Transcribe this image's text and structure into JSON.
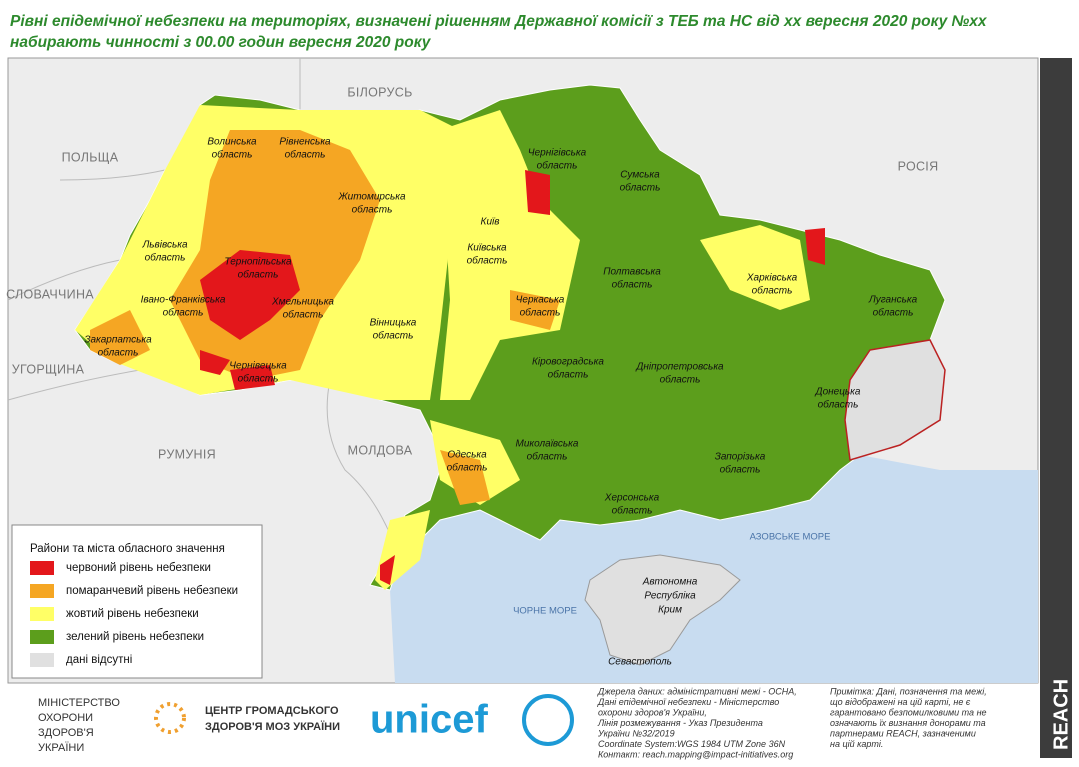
{
  "title": [
    "Рівні епідемічної небезпеки на територіях, визначені рішенням Державної комісії з ТЕБ та НС від хх вересня 2020 року №хх",
    "набирають чинності з 00.00 годин  вересня 2020 року"
  ],
  "countries": [
    "БІЛОРУСЬ",
    "ПОЛЬЩА",
    "РОСІЯ",
    "СЛОВАЧЧИНА",
    "УГОРЩИНА",
    "РУМУНІЯ",
    "МОЛДОВА"
  ],
  "seas": [
    "АЗОВСЬКЕ МОРЕ",
    "ЧОРНЕ МОРЕ"
  ],
  "crimea": [
    "Автономна",
    "Республіка",
    "Крим"
  ],
  "sevastopol": "Севастополь",
  "regions": [
    {
      "name": "Волинська",
      "type": "область"
    },
    {
      "name": "Рівненська",
      "type": "область"
    },
    {
      "name": "Житомирська",
      "type": "область"
    },
    {
      "name": "Чернігівська",
      "type": "область"
    },
    {
      "name": "Сумська",
      "type": "область"
    },
    {
      "name": "Київ"
    },
    {
      "name": "Київська",
      "type": "область"
    },
    {
      "name": "Львівська",
      "type": "область"
    },
    {
      "name": "Тернопільська",
      "type": "область"
    },
    {
      "name": "Хмельницька",
      "type": "область"
    },
    {
      "name": "Івано-Франківська",
      "type": "область"
    },
    {
      "name": "Закарпатська",
      "type": "область"
    },
    {
      "name": "Чернівецька",
      "type": "область"
    },
    {
      "name": "Вінницька",
      "type": "область"
    },
    {
      "name": "Черкаська",
      "type": "область"
    },
    {
      "name": "Полтавська",
      "type": "область"
    },
    {
      "name": "Харківська",
      "type": "область"
    },
    {
      "name": "Луганська",
      "type": "область"
    },
    {
      "name": "Кіровоградська",
      "type": "область"
    },
    {
      "name": "Дніпропетровська",
      "type": "область"
    },
    {
      "name": "Донецька",
      "type": "область"
    },
    {
      "name": "Одеська",
      "type": "область"
    },
    {
      "name": "Миколаївська",
      "type": "область"
    },
    {
      "name": "Запорізька",
      "type": "область"
    },
    {
      "name": "Херсонська",
      "type": "область"
    }
  ],
  "legend": {
    "title": "Райони та міста обласного значення",
    "items": [
      {
        "label": "червоний рівень небезпеки",
        "color": "#e3171b"
      },
      {
        "label": "помаранчевий рівень небезпеки",
        "color": "#f5a623"
      },
      {
        "label": "жовтий рівень небезпеки",
        "color": "#ffff66"
      },
      {
        "label": "зелений рівень небезпеки",
        "color": "#5c9e1c"
      },
      {
        "label": "дані відсутні",
        "color": "#e0e0e0"
      }
    ]
  },
  "footer": {
    "moz": [
      "МІНІСТЕРСТВО",
      "ОХОРОНИ",
      "ЗДОРОВ'Я",
      "УКРАЇНИ"
    ],
    "phc": [
      "ЦЕНТР ГРОМАДСЬКОГО",
      "ЗДОРОВ'Я МОЗ УКРАЇНИ"
    ],
    "unicef": "unicef",
    "sources": [
      "Джерела даних: адміністративні межі - OCHA,",
      "Дані епідемічної небезпеки - Міністерство",
      "охорони здоров'я України,",
      "Лінія розмежування - Указ Президента",
      "України №32/2019",
      "Coordinate System:WGS 1984 UTM Zone 36N",
      "Контакт: reach.mapping@impact-initiatives.org"
    ],
    "note": [
      "Примітка: Дані, позначення та межі,",
      "що відображені на цій карті, не є",
      "гарантовано безпомилковими та не",
      "означають їх визнання донорами та",
      "партнерами REACH, зазначеними",
      "на цій карті."
    ],
    "reach": "REACH"
  }
}
